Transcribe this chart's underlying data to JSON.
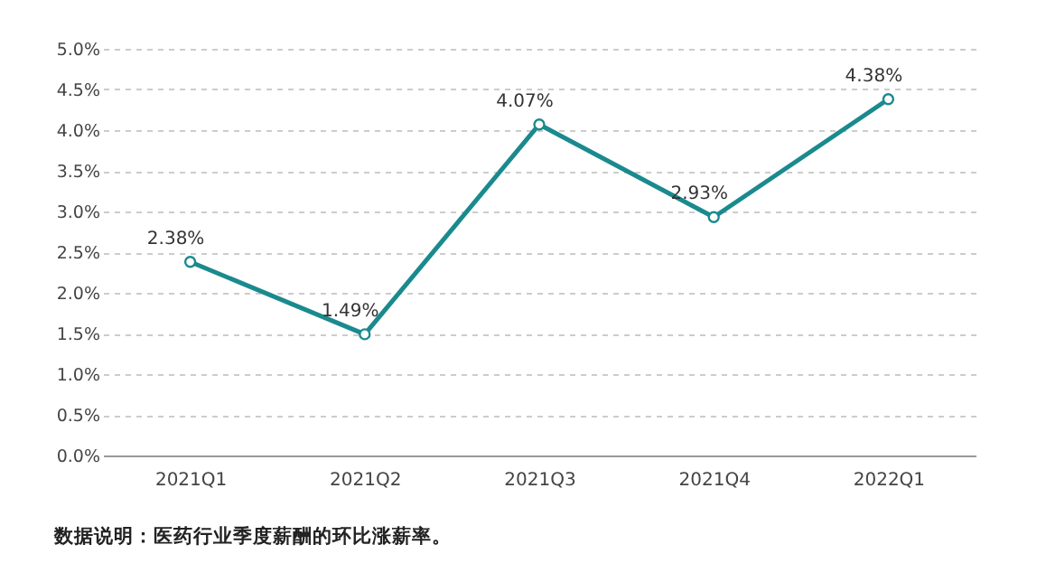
{
  "chart_data": {
    "type": "line",
    "categories": [
      "2021Q1",
      "2021Q2",
      "2021Q3",
      "2021Q4",
      "2022Q1"
    ],
    "series": [
      {
        "color": "#1a8a8e",
        "values": [
          2.38,
          1.49,
          4.07,
          2.93,
          4.38
        ],
        "value_labels": [
          "2.38%",
          "1.49%",
          "4.07%",
          "2.93%",
          "4.38%"
        ]
      }
    ],
    "ylim": [
      0,
      5
    ],
    "yticks": [
      {
        "value": 0,
        "label": "0.0%"
      },
      {
        "value": 0.5,
        "label": "0.5%"
      },
      {
        "value": 1,
        "label": "1.0%"
      },
      {
        "value": 1.5,
        "label": "1.5%"
      },
      {
        "value": 2,
        "label": "2.0%"
      },
      {
        "value": 2.5,
        "label": "2.5%"
      },
      {
        "value": 3,
        "label": "3.0%"
      },
      {
        "value": 3.5,
        "label": "3.5%"
      },
      {
        "value": 4,
        "label": "4.0%"
      },
      {
        "value": 4.5,
        "label": "4.5%"
      },
      {
        "value": 5,
        "label": "5.0%"
      }
    ],
    "grid": "y",
    "marker": "circle",
    "line_style": "solid",
    "legend": false,
    "annotations": [
      "数据说明：医药行业季度薪酬的环比涨薪率。"
    ]
  }
}
